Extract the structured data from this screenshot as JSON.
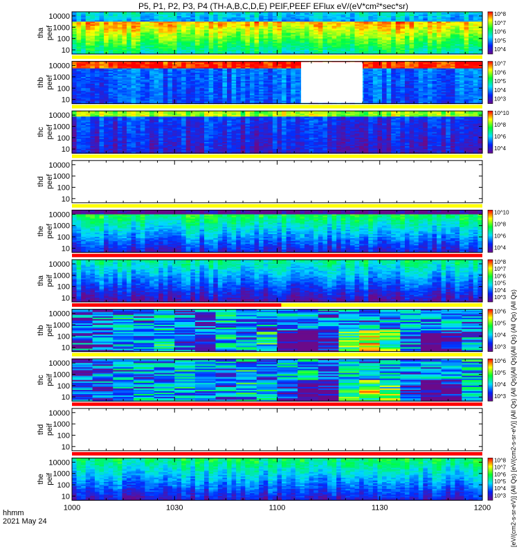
{
  "title": "P5, P1, P2, P3, P4 (TH-A,B,C,D,E) PEIF,PEEF EFlux eV/(eV*cm²*sec*sr)",
  "time_axis": {
    "label_line1": "hhmm",
    "label_line2": "2021 May 24"
  },
  "colorbar_side_label": "[eV/(cm2-s-sr-eV)] (All Qs) [eV/(cm2-s-sr-eV)] (All Qs) (All Qs)(All Qs)(All Qs) (All Qs) (All Qs)",
  "colors": {
    "red": "#ff0000",
    "yellow": "#ffff00",
    "green": "#00ff40",
    "cyan": "#00d8ff",
    "blue": "#0030ff",
    "purple": "#6a1aa8",
    "black": "#000000"
  },
  "chart_data": {
    "type": "heatmap",
    "x_ticks": [
      "1000",
      "1030",
      "1100",
      "1130",
      "1200"
    ],
    "x_range": [
      "10:00",
      "12:00"
    ],
    "y_scale": "log",
    "y_ticks": [
      "10",
      "100",
      "1000",
      "10000"
    ],
    "panels": [
      {
        "id": "tha_peef",
        "label_line1": "tha",
        "label_line2": "peef",
        "empty": false,
        "colorbar_ticks": [
          "10^8",
          "10^7",
          "10^6",
          "10^5",
          "10^4"
        ]
      },
      {
        "id": "thb_peef",
        "label_line1": "thb",
        "label_line2": "peef",
        "empty": false,
        "gap": [
          "11:07",
          "11:25"
        ],
        "colorbar_ticks": [
          "10^7",
          "10^6",
          "10^5",
          "10^4",
          "10^3"
        ]
      },
      {
        "id": "thc_peef",
        "label_line1": "thc",
        "label_line2": "peef",
        "empty": false,
        "colorbar_ticks": [
          "10^10",
          "10^8",
          "10^6",
          "10^4"
        ]
      },
      {
        "id": "thd_peef",
        "label_line1": "thd",
        "label_line2": "peef",
        "empty": true,
        "colorbar_ticks": []
      },
      {
        "id": "the_peef",
        "label_line1": "the",
        "label_line2": "peef",
        "empty": false,
        "colorbar_ticks": [
          "10^10",
          "10^8",
          "10^6",
          "10^4"
        ]
      },
      {
        "id": "tha_peif",
        "label_line1": "tha",
        "label_line2": "peif",
        "empty": false,
        "colorbar_ticks": [
          "10^8",
          "10^7",
          "10^6",
          "10^5",
          "10^4",
          "10^3"
        ]
      },
      {
        "id": "thb_peif",
        "label_line1": "thb",
        "label_line2": "peif",
        "empty": false,
        "colorbar_ticks": [
          "10^6",
          "10^5",
          "10^4",
          "10^3"
        ]
      },
      {
        "id": "thc_peif",
        "label_line1": "thc",
        "label_line2": "peif",
        "empty": false,
        "colorbar_ticks": [
          "10^6",
          "10^5",
          "10^4",
          "10^3"
        ]
      },
      {
        "id": "thd_peif",
        "label_line1": "thd",
        "label_line2": "peif",
        "empty": true,
        "colorbar_ticks": []
      },
      {
        "id": "the_peif",
        "label_line1": "the",
        "label_line2": "peif",
        "empty": false,
        "colorbar_ticks": [
          "10^8",
          "10^7",
          "10^6",
          "10^5",
          "10^4",
          "10^3"
        ]
      }
    ]
  }
}
